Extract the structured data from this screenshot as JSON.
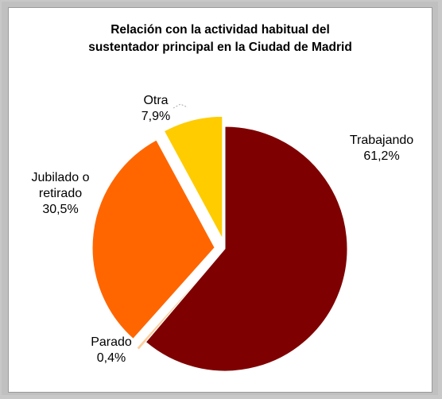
{
  "chart_data": {
    "type": "pie",
    "title": "Relación con la actividad habitual del sustentador principal en la Ciudad de Madrid",
    "title_lines": [
      "Relación con la actividad habitual del",
      "sustentador principal en la Ciudad de Madrid"
    ],
    "slices": [
      {
        "label": "Trabajando",
        "label_lines": [
          "Trabajando"
        ],
        "value": 61.2,
        "value_label": "61,2%",
        "color": "#7f0000",
        "exploded": false
      },
      {
        "label": "Parado",
        "label_lines": [
          "Parado"
        ],
        "value": 0.4,
        "value_label": "0,4%",
        "color": "#ffcc99",
        "exploded": true
      },
      {
        "label": "Jubilado o retirado",
        "label_lines": [
          "Jubilado o",
          "retirado"
        ],
        "value": 30.5,
        "value_label": "30,5%",
        "color": "#ff6600",
        "exploded": true
      },
      {
        "label": "Otra",
        "label_lines": [
          "Otra"
        ],
        "value": 7.9,
        "value_label": "7,9%",
        "color": "#ffcc00",
        "exploded": true
      }
    ],
    "start_angle_deg": 0,
    "direction": "clockwise",
    "legend": "none",
    "background": "#ffffff",
    "frame_color": "#c0c0c0"
  }
}
